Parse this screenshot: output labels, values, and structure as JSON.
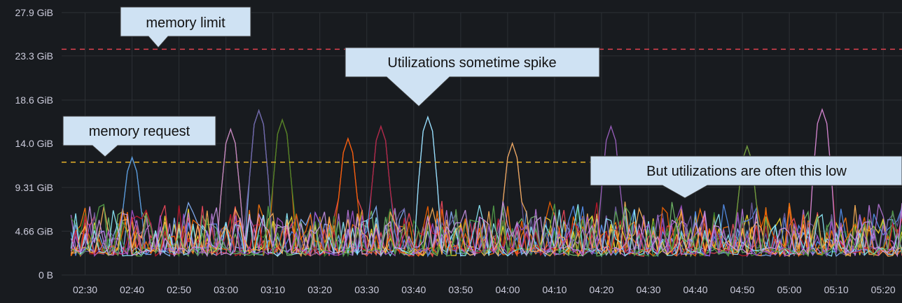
{
  "chart_data": {
    "type": "line",
    "title": "",
    "xlabel": "",
    "ylabel": "",
    "x_ticks": [
      "02:30",
      "02:40",
      "02:50",
      "03:00",
      "03:10",
      "03:20",
      "03:30",
      "03:40",
      "03:50",
      "04:00",
      "04:10",
      "04:20",
      "04:30",
      "04:40",
      "04:50",
      "05:00",
      "05:10",
      "05:20"
    ],
    "y_ticks": [
      "0 B",
      "4.66 GiB",
      "9.31 GiB",
      "14.0 GiB",
      "18.6 GiB",
      "23.3 GiB",
      "27.9 GiB"
    ],
    "y_tick_values": [
      0,
      4.66,
      9.31,
      14.0,
      18.6,
      23.3,
      27.9
    ],
    "xlim": [
      "02:25",
      "05:24"
    ],
    "ylim": [
      0,
      27.9
    ],
    "y_unit": "GiB",
    "grid": true,
    "thresholds": [
      {
        "label": "memory limit",
        "value": 24.0,
        "color": "#e0424f",
        "style": "dashed"
      },
      {
        "label": "memory request",
        "value": 12.0,
        "color": "#e6b128",
        "style": "dashed",
        "x_end": "04:25"
      }
    ],
    "annotations": [
      {
        "text": "memory limit"
      },
      {
        "text": "memory request"
      },
      {
        "text": "Utilizations sometime spike"
      },
      {
        "text": "But utilizations are often this low"
      }
    ],
    "series_colors": [
      "#73bf69",
      "#fade2a",
      "#8ab8ff",
      "#ff780a",
      "#f2495c",
      "#5794f2",
      "#b877d9",
      "#705da0",
      "#37872d",
      "#fa6400",
      "#c4162a",
      "#8ff0ff",
      "#ffb357",
      "#a352cc",
      "#56a64b",
      "#ca95e5"
    ],
    "series_baseline_gib": [
      2,
      3
    ],
    "series_typical_peak_gib": [
      5,
      8
    ],
    "series_notable_peaks": [
      {
        "x": "02:40",
        "y": 12.5
      },
      {
        "x": "03:01",
        "y": 15.5
      },
      {
        "x": "03:07",
        "y": 17.5
      },
      {
        "x": "03:12",
        "y": 16.5
      },
      {
        "x": "03:26",
        "y": 14.5
      },
      {
        "x": "03:33",
        "y": 15.8
      },
      {
        "x": "03:43",
        "y": 16.8
      },
      {
        "x": "04:01",
        "y": 14.0
      },
      {
        "x": "04:22",
        "y": 15.8
      },
      {
        "x": "04:51",
        "y": 13.7
      },
      {
        "x": "05:07",
        "y": 17.6
      }
    ]
  }
}
